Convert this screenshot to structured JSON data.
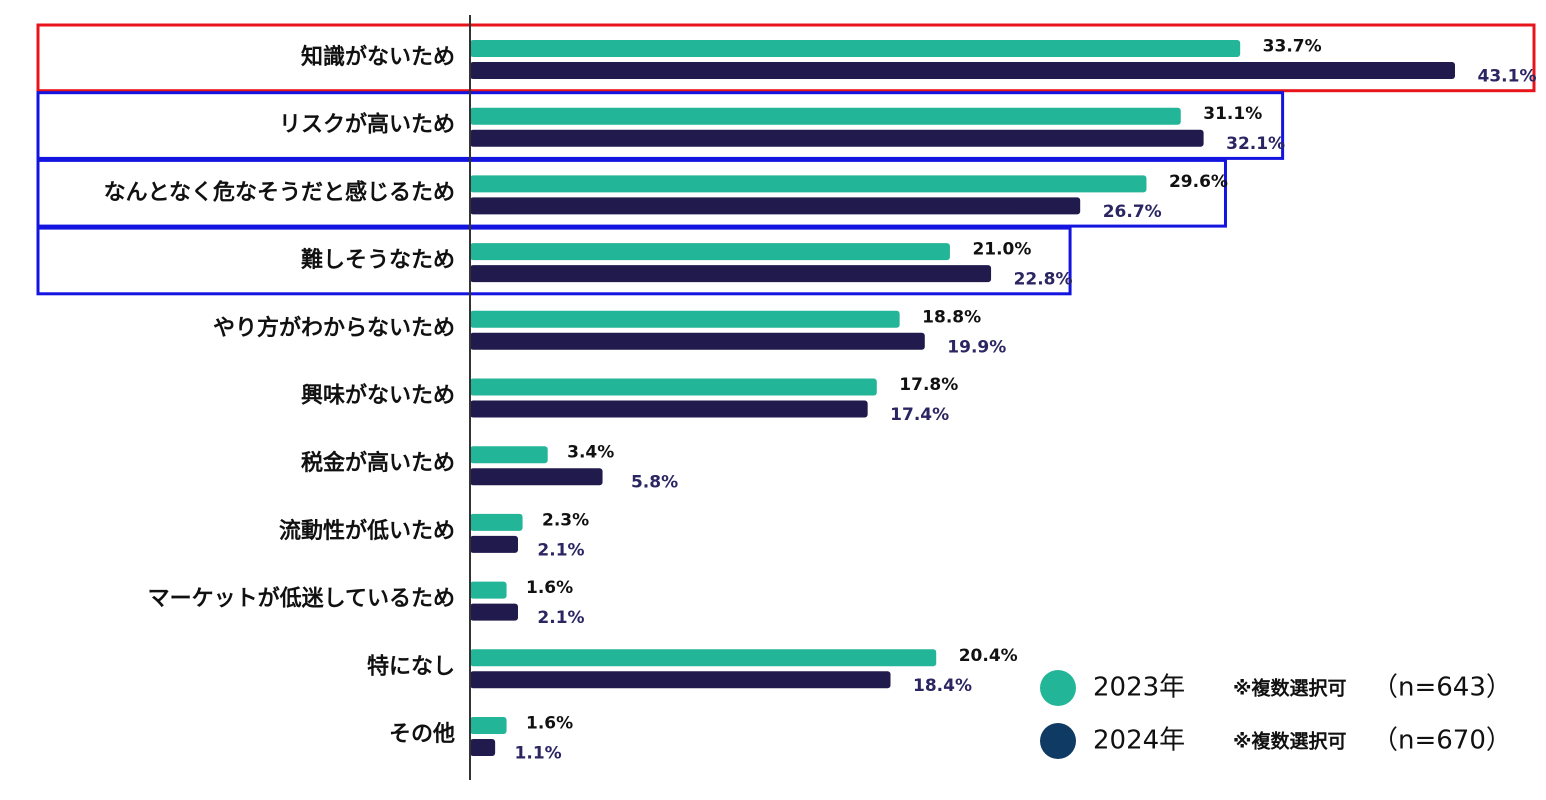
{
  "chart_data": {
    "type": "bar",
    "orientation": "horizontal",
    "categories": [
      "知識がないため",
      "リスクが高いため",
      "なんとなく危なそうだと感じるため",
      "難しそうなため",
      "やり方がわからないため",
      "興味がないため",
      "税金が高いため",
      "流動性が低いため",
      "マーケットが低迷しているため",
      "特になし",
      "その他"
    ],
    "series": [
      {
        "name": "2023年",
        "note": "※複数選択可",
        "n_label": "（n=643）",
        "color": "#23b597",
        "label_color": "#111111",
        "values": [
          33.7,
          31.1,
          29.6,
          21.0,
          18.8,
          17.8,
          3.4,
          2.3,
          1.6,
          20.4,
          1.6
        ],
        "value_labels": [
          "33.7%",
          "31.1%",
          "29.6%",
          "21.0%",
          "18.8%",
          "17.8%",
          "3.4%",
          "2.3%",
          "1.6%",
          "20.4%",
          "1.6%"
        ]
      },
      {
        "name": "2024年",
        "note": "※複数選択可",
        "n_label": "（n=670）",
        "color": "#201a4d",
        "legend_color": "#0f3a63",
        "label_color": "#2b2662",
        "values": [
          43.1,
          32.1,
          26.7,
          22.8,
          19.9,
          17.4,
          5.8,
          2.1,
          2.1,
          18.4,
          1.1
        ],
        "value_labels": [
          "43.1%",
          "32.1%",
          "26.7%",
          "22.8%",
          "19.9%",
          "17.4%",
          "5.8%",
          "2.1%",
          "2.1%",
          "18.4%",
          "1.1%"
        ]
      }
    ],
    "xlim": [
      0,
      43.1
    ],
    "highlights": [
      {
        "categories": [
          0
        ],
        "color": "#e8141b"
      },
      {
        "categories": [
          1
        ],
        "color": "#1414e0"
      },
      {
        "categories": [
          2
        ],
        "color": "#1414e0"
      },
      {
        "categories": [
          3
        ],
        "color": "#1414e0"
      }
    ],
    "axis_color": "#333333",
    "legend_position": "bottom-right"
  }
}
